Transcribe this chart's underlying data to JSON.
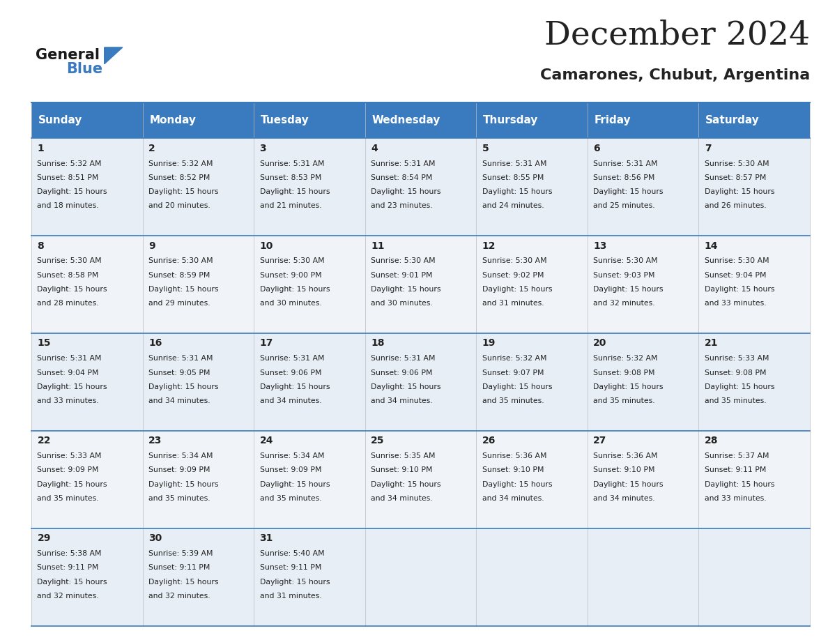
{
  "title": "December 2024",
  "subtitle": "Camarones, Chubut, Argentina",
  "header_color": "#3a7abf",
  "header_text_color": "#ffffff",
  "day_names": [
    "Sunday",
    "Monday",
    "Tuesday",
    "Wednesday",
    "Thursday",
    "Friday",
    "Saturday"
  ],
  "background_color": "#ffffff",
  "border_color": "#3a7abf",
  "text_color": "#222222",
  "days": [
    {
      "day": 1,
      "col": 0,
      "row": 0,
      "sunrise": "5:32 AM",
      "sunset": "8:51 PM",
      "daylight": "15 hours and 18 minutes"
    },
    {
      "day": 2,
      "col": 1,
      "row": 0,
      "sunrise": "5:32 AM",
      "sunset": "8:52 PM",
      "daylight": "15 hours and 20 minutes"
    },
    {
      "day": 3,
      "col": 2,
      "row": 0,
      "sunrise": "5:31 AM",
      "sunset": "8:53 PM",
      "daylight": "15 hours and 21 minutes"
    },
    {
      "day": 4,
      "col": 3,
      "row": 0,
      "sunrise": "5:31 AM",
      "sunset": "8:54 PM",
      "daylight": "15 hours and 23 minutes"
    },
    {
      "day": 5,
      "col": 4,
      "row": 0,
      "sunrise": "5:31 AM",
      "sunset": "8:55 PM",
      "daylight": "15 hours and 24 minutes"
    },
    {
      "day": 6,
      "col": 5,
      "row": 0,
      "sunrise": "5:31 AM",
      "sunset": "8:56 PM",
      "daylight": "15 hours and 25 minutes"
    },
    {
      "day": 7,
      "col": 6,
      "row": 0,
      "sunrise": "5:30 AM",
      "sunset": "8:57 PM",
      "daylight": "15 hours and 26 minutes"
    },
    {
      "day": 8,
      "col": 0,
      "row": 1,
      "sunrise": "5:30 AM",
      "sunset": "8:58 PM",
      "daylight": "15 hours and 28 minutes"
    },
    {
      "day": 9,
      "col": 1,
      "row": 1,
      "sunrise": "5:30 AM",
      "sunset": "8:59 PM",
      "daylight": "15 hours and 29 minutes"
    },
    {
      "day": 10,
      "col": 2,
      "row": 1,
      "sunrise": "5:30 AM",
      "sunset": "9:00 PM",
      "daylight": "15 hours and 30 minutes"
    },
    {
      "day": 11,
      "col": 3,
      "row": 1,
      "sunrise": "5:30 AM",
      "sunset": "9:01 PM",
      "daylight": "15 hours and 30 minutes"
    },
    {
      "day": 12,
      "col": 4,
      "row": 1,
      "sunrise": "5:30 AM",
      "sunset": "9:02 PM",
      "daylight": "15 hours and 31 minutes"
    },
    {
      "day": 13,
      "col": 5,
      "row": 1,
      "sunrise": "5:30 AM",
      "sunset": "9:03 PM",
      "daylight": "15 hours and 32 minutes"
    },
    {
      "day": 14,
      "col": 6,
      "row": 1,
      "sunrise": "5:30 AM",
      "sunset": "9:04 PM",
      "daylight": "15 hours and 33 minutes"
    },
    {
      "day": 15,
      "col": 0,
      "row": 2,
      "sunrise": "5:31 AM",
      "sunset": "9:04 PM",
      "daylight": "15 hours and 33 minutes"
    },
    {
      "day": 16,
      "col": 1,
      "row": 2,
      "sunrise": "5:31 AM",
      "sunset": "9:05 PM",
      "daylight": "15 hours and 34 minutes"
    },
    {
      "day": 17,
      "col": 2,
      "row": 2,
      "sunrise": "5:31 AM",
      "sunset": "9:06 PM",
      "daylight": "15 hours and 34 minutes"
    },
    {
      "day": 18,
      "col": 3,
      "row": 2,
      "sunrise": "5:31 AM",
      "sunset": "9:06 PM",
      "daylight": "15 hours and 34 minutes"
    },
    {
      "day": 19,
      "col": 4,
      "row": 2,
      "sunrise": "5:32 AM",
      "sunset": "9:07 PM",
      "daylight": "15 hours and 35 minutes"
    },
    {
      "day": 20,
      "col": 5,
      "row": 2,
      "sunrise": "5:32 AM",
      "sunset": "9:08 PM",
      "daylight": "15 hours and 35 minutes"
    },
    {
      "day": 21,
      "col": 6,
      "row": 2,
      "sunrise": "5:33 AM",
      "sunset": "9:08 PM",
      "daylight": "15 hours and 35 minutes"
    },
    {
      "day": 22,
      "col": 0,
      "row": 3,
      "sunrise": "5:33 AM",
      "sunset": "9:09 PM",
      "daylight": "15 hours and 35 minutes"
    },
    {
      "day": 23,
      "col": 1,
      "row": 3,
      "sunrise": "5:34 AM",
      "sunset": "9:09 PM",
      "daylight": "15 hours and 35 minutes"
    },
    {
      "day": 24,
      "col": 2,
      "row": 3,
      "sunrise": "5:34 AM",
      "sunset": "9:09 PM",
      "daylight": "15 hours and 35 minutes"
    },
    {
      "day": 25,
      "col": 3,
      "row": 3,
      "sunrise": "5:35 AM",
      "sunset": "9:10 PM",
      "daylight": "15 hours and 34 minutes"
    },
    {
      "day": 26,
      "col": 4,
      "row": 3,
      "sunrise": "5:36 AM",
      "sunset": "9:10 PM",
      "daylight": "15 hours and 34 minutes"
    },
    {
      "day": 27,
      "col": 5,
      "row": 3,
      "sunrise": "5:36 AM",
      "sunset": "9:10 PM",
      "daylight": "15 hours and 34 minutes"
    },
    {
      "day": 28,
      "col": 6,
      "row": 3,
      "sunrise": "5:37 AM",
      "sunset": "9:11 PM",
      "daylight": "15 hours and 33 minutes"
    },
    {
      "day": 29,
      "col": 0,
      "row": 4,
      "sunrise": "5:38 AM",
      "sunset": "9:11 PM",
      "daylight": "15 hours and 32 minutes"
    },
    {
      "day": 30,
      "col": 1,
      "row": 4,
      "sunrise": "5:39 AM",
      "sunset": "9:11 PM",
      "daylight": "15 hours and 32 minutes"
    },
    {
      "day": 31,
      "col": 2,
      "row": 4,
      "sunrise": "5:40 AM",
      "sunset": "9:11 PM",
      "daylight": "15 hours and 31 minutes"
    }
  ],
  "logo_text_general": "General",
  "logo_text_blue": "Blue",
  "logo_color_general": "#1a1a1a",
  "logo_color_blue": "#3a7abf",
  "logo_triangle_color": "#3a7abf",
  "row_colors": [
    "#e8eef5",
    "#f0f4f8",
    "#e8eef5",
    "#f0f4f8",
    "#e8eef5"
  ]
}
